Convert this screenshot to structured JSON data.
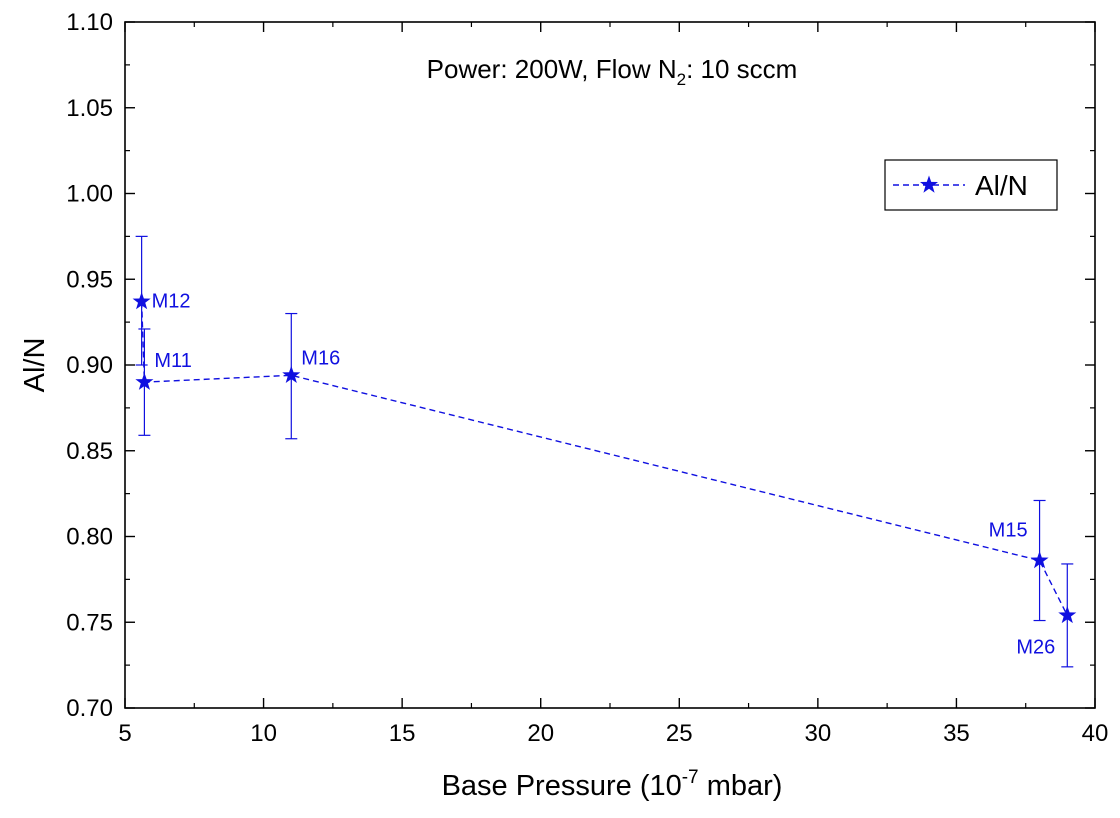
{
  "chart_data": {
    "type": "scatter",
    "title_parts": [
      "Power: 200W, Flow N",
      "2",
      ": 10 sccm"
    ],
    "xlabel_parts": [
      "Base Pressure (10",
      "-7",
      " mbar)"
    ],
    "ylabel": "Al/N",
    "xlim": [
      5,
      40
    ],
    "ylim": [
      0.7,
      1.1
    ],
    "x_ticks": [
      "5",
      "10",
      "15",
      "20",
      "25",
      "30",
      "35",
      "40"
    ],
    "y_ticks": [
      "0.70",
      "0.75",
      "0.80",
      "0.85",
      "0.90",
      "0.95",
      "1.00",
      "1.05",
      "1.10"
    ],
    "legend_position": "top-right",
    "series": [
      {
        "name": "Al/N",
        "color": "#1010e0",
        "marker": "star",
        "line_style": "dashed",
        "points": [
          {
            "label": "M12",
            "x": 5.6,
            "y": 0.937,
            "err_low": 0.9,
            "err_high": 0.975
          },
          {
            "label": "M11",
            "x": 5.7,
            "y": 0.89,
            "err_low": 0.859,
            "err_high": 0.921
          },
          {
            "label": "M16",
            "x": 11.0,
            "y": 0.894,
            "err_low": 0.857,
            "err_high": 0.93
          },
          {
            "label": "M15",
            "x": 38.0,
            "y": 0.786,
            "err_low": 0.751,
            "err_high": 0.821
          },
          {
            "label": "M26",
            "x": 39.0,
            "y": 0.754,
            "err_low": 0.724,
            "err_high": 0.784
          }
        ]
      }
    ]
  }
}
